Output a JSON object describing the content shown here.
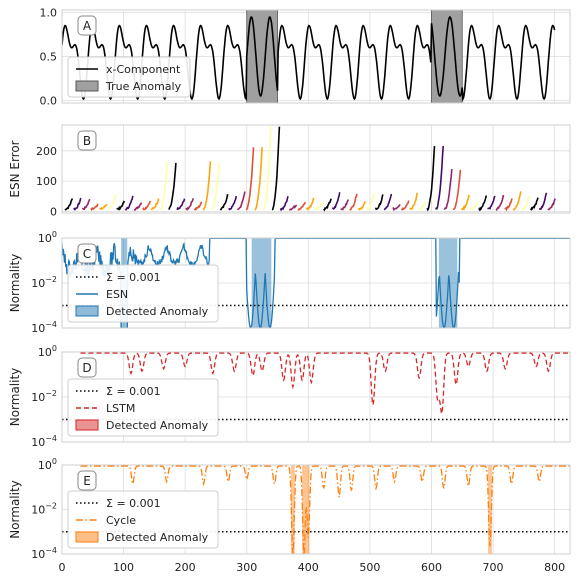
{
  "figure": {
    "x_ticks": [
      0,
      100,
      200,
      300,
      400,
      500,
      600,
      700,
      800
    ],
    "xlim": [
      0,
      825
    ]
  },
  "chart_data": [
    {
      "panel": "A",
      "type": "line",
      "ylabel": "",
      "ylim": [
        -0.03,
        1.03
      ],
      "y_ticks": [
        {
          "v": 0.0,
          "label": "0.0"
        },
        {
          "v": 0.5,
          "label": "0.5"
        },
        {
          "v": 1.0,
          "label": "1.0"
        }
      ],
      "grid": true,
      "legend_position": "lower-left",
      "legend": [
        {
          "label": "x-Component",
          "style": "line",
          "color": "#000000"
        },
        {
          "label": "True Anomaly",
          "style": "patch",
          "color": "#a0a0a0"
        }
      ],
      "anomaly_regions": [
        [
          300,
          350
        ],
        [
          600,
          650
        ]
      ],
      "series": [
        {
          "name": "x-Component",
          "color": "#000000",
          "x_range": [
            0,
            800
          ],
          "description_values": "oscillation between 0.0 and 1.0 with period ~45"
        }
      ]
    },
    {
      "panel": "B",
      "type": "line",
      "ylabel": "ESN Error",
      "ylim": [
        -5,
        285
      ],
      "y_ticks": [
        {
          "v": 0,
          "label": "0"
        },
        {
          "v": 100,
          "label": "100"
        },
        {
          "v": 200,
          "label": "200"
        }
      ],
      "grid": true,
      "series_colors": [
        "#000004",
        "#420a68",
        "#932667",
        "#dd513a",
        "#fca50a",
        "#fcffa4"
      ],
      "peaks": [
        {
          "x": 178,
          "y": 150
        },
        {
          "x": 248,
          "y": 155
        },
        {
          "x": 322,
          "y": 205
        },
        {
          "x": 345,
          "y": 270
        },
        {
          "x": 615,
          "y": 210
        },
        {
          "x": 640,
          "y": 130
        }
      ]
    },
    {
      "panel": "C",
      "type": "line",
      "ylabel": "Normality",
      "yscale": "log",
      "ylim": [
        0.0001,
        1
      ],
      "y_ticks": [
        {
          "v": 0.0001,
          "label": "10",
          "exp": "−4"
        },
        {
          "v": 0.01,
          "label": "10",
          "exp": "−2"
        },
        {
          "v": 1,
          "label": "10",
          "exp": "0"
        }
      ],
      "grid": true,
      "legend_position": "lower-left",
      "threshold": 0.001,
      "legend": [
        {
          "label": "Σ = 0.001",
          "style": "dotted",
          "color": "#000000"
        },
        {
          "label": "ESN",
          "style": "line",
          "color": "#1f77b4"
        },
        {
          "label": "Detected Anomaly",
          "style": "patch",
          "color": "#1f77b4"
        }
      ],
      "detected_regions": [
        [
          96,
          106
        ],
        [
          308,
          340
        ],
        [
          612,
          642
        ]
      ],
      "series": [
        {
          "name": "ESN",
          "color": "#1f77b4",
          "x_range": [
            0,
            825
          ]
        }
      ]
    },
    {
      "panel": "D",
      "type": "line",
      "ylabel": "Normality",
      "yscale": "log",
      "ylim": [
        0.0001,
        1
      ],
      "y_ticks": [
        {
          "v": 0.0001,
          "label": "10",
          "exp": "−4"
        },
        {
          "v": 0.01,
          "label": "10",
          "exp": "−2"
        },
        {
          "v": 1,
          "label": "10",
          "exp": "0"
        }
      ],
      "grid": true,
      "legend_position": "lower-left",
      "threshold": 0.001,
      "legend": [
        {
          "label": "Σ = 0.001",
          "style": "dotted",
          "color": "#000000"
        },
        {
          "label": "LSTM",
          "style": "dashed",
          "color": "#d62728"
        },
        {
          "label": "Detected Anomaly",
          "style": "patch",
          "color": "#d62728"
        }
      ],
      "detected_regions": [],
      "series": [
        {
          "name": "LSTM",
          "color": "#d62728",
          "x_range": [
            30,
            825
          ]
        }
      ]
    },
    {
      "panel": "E",
      "type": "line",
      "ylabel": "Normality",
      "yscale": "log",
      "ylim": [
        0.0001,
        1
      ],
      "y_ticks": [
        {
          "v": 0.0001,
          "label": "10",
          "exp": "−4"
        },
        {
          "v": 0.01,
          "label": "10",
          "exp": "−2"
        },
        {
          "v": 1,
          "label": "10",
          "exp": "0"
        }
      ],
      "grid": true,
      "legend_position": "lower-left",
      "threshold": 0.001,
      "legend": [
        {
          "label": "Σ = 0.001",
          "style": "dotted",
          "color": "#000000"
        },
        {
          "label": "Cycle",
          "style": "dashdot",
          "color": "#ff7f0e"
        },
        {
          "label": "Detected Anomaly",
          "style": "patch",
          "color": "#ff7f0e"
        }
      ],
      "detected_regions": [
        [
          372,
          378
        ],
        [
          390,
          402
        ],
        [
          692,
          698
        ]
      ],
      "series": [
        {
          "name": "Cycle",
          "color": "#ff7f0e",
          "x_range": [
            30,
            825
          ]
        }
      ]
    }
  ]
}
